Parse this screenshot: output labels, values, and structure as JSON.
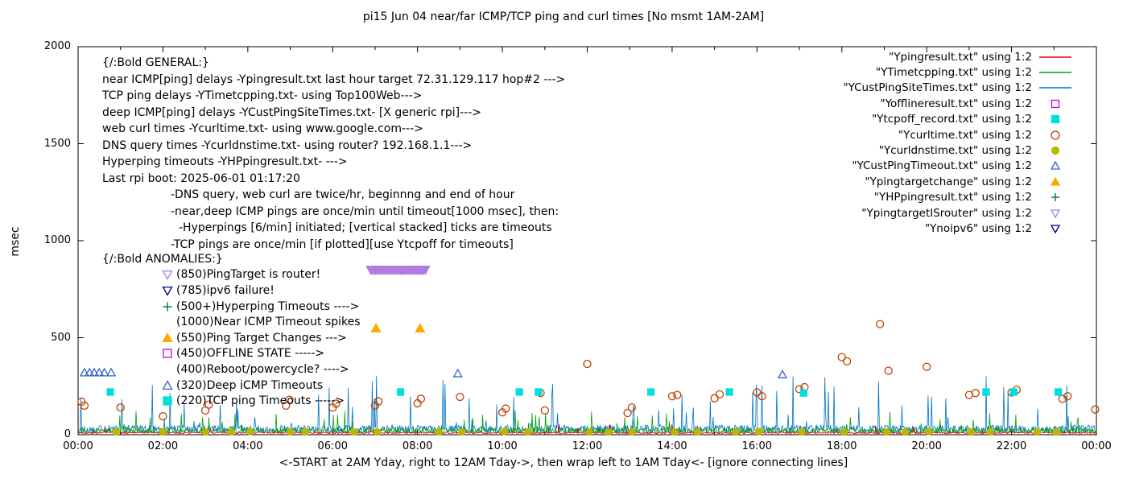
{
  "chart_data": {
    "type": "line+scatter",
    "title": "pi15 Jun 04  near/far ICMP/TCP ping and curl times [No msmt 1AM-2AM]",
    "ylabel": "msec",
    "xlabel": "<-START at 2AM Yday, right to 12AM Tday->, then wrap left to 1AM Tday<- [ignore connecting lines]",
    "ylim": [
      0,
      2000
    ],
    "x_hours": [
      0,
      24
    ],
    "grid": false,
    "legend_position": "top-right-inside",
    "x_ticks": [
      "00:00",
      "02:00",
      "04:00",
      "06:00",
      "08:00",
      "10:00",
      "12:00",
      "14:00",
      "16:00",
      "18:00",
      "20:00",
      "22:00",
      "00:00"
    ],
    "y_ticks": [
      0,
      500,
      1000,
      1500,
      2000
    ],
    "legend": [
      {
        "label": "\"Ypingresult.txt\" using 1:2",
        "sample": "line",
        "color": "#e60000"
      },
      {
        "label": "\"YTimetcpping.txt\" using 1:2",
        "sample": "line",
        "color": "#00a000"
      },
      {
        "label": "\"YCustPingSiteTimes.txt\" using 1:2",
        "sample": "line",
        "color": "#0072c8"
      },
      {
        "label": "\"Yofflineresult.txt\" using 1:2",
        "sample": "square-open",
        "color": "#cc00cc"
      },
      {
        "label": "\"Ytcpoff_record.txt\" using 1:2",
        "sample": "square-filled",
        "color": "#00dede"
      },
      {
        "label": "\"Ycurltime.txt\" using 1:2",
        "sample": "circle-open",
        "color": "#c04000"
      },
      {
        "label": "\"Ycurldnstime.txt\" using 1:2",
        "sample": "circle-filled",
        "color": "#b8b800"
      },
      {
        "label": "\"YCustPingTimeout.txt\" using 1:2",
        "sample": "triangle-open",
        "color": "#3465cd"
      },
      {
        "label": "\"Ypingtargetchange\" using 1:2",
        "sample": "triangle-filled",
        "color": "#ffa800"
      },
      {
        "label": "\"YHPpingresult.txt\" using 1:2",
        "sample": "plus",
        "color": "#008040"
      },
      {
        "label": "\"YpingtargetISrouter\" using 1:2",
        "sample": "tri-down-open",
        "color": "#b07ce0"
      },
      {
        "label": "\"Ynoipv6\" using 1:2",
        "sample": "tri-down-open",
        "color": "#000080"
      }
    ],
    "line_series": [
      {
        "name": "Ypingresult.txt",
        "color": "#e60000",
        "base": 5,
        "jitter": 10,
        "spike_prob": 0.012,
        "spike_max": 45,
        "seed": 7
      },
      {
        "name": "YTimetcpping.txt",
        "color": "#00a000",
        "base": 6,
        "jitter": 28,
        "spike_prob": 0.05,
        "spike_max": 110,
        "seed": 13
      },
      {
        "name": "YCustPingSiteTimes.txt",
        "color": "#0072c8",
        "base": 8,
        "jitter": 42,
        "spike_prob": 0.06,
        "spike_max": 260,
        "seed": 29
      }
    ],
    "scatter_series": [
      {
        "name": "Ycurltime.txt",
        "marker": "circle-open",
        "color": "#c04000",
        "size": 4.5,
        "points": [
          [
            0.08,
            170
          ],
          [
            0.15,
            150
          ],
          [
            1.0,
            140
          ],
          [
            2.0,
            95
          ],
          [
            3.0,
            125
          ],
          [
            3.08,
            155
          ],
          [
            4.9,
            150
          ],
          [
            4.98,
            180
          ],
          [
            6.0,
            140
          ],
          [
            6.08,
            160
          ],
          [
            7.0,
            150
          ],
          [
            7.08,
            172
          ],
          [
            8.0,
            162
          ],
          [
            8.08,
            185
          ],
          [
            9.0,
            195
          ],
          [
            10.0,
            115
          ],
          [
            10.08,
            135
          ],
          [
            10.9,
            215
          ],
          [
            11.0,
            125
          ],
          [
            12.0,
            365
          ],
          [
            12.95,
            112
          ],
          [
            13.05,
            140
          ],
          [
            14.0,
            198
          ],
          [
            14.12,
            205
          ],
          [
            15.0,
            188
          ],
          [
            15.12,
            208
          ],
          [
            16.0,
            218
          ],
          [
            16.12,
            198
          ],
          [
            17.0,
            235
          ],
          [
            17.12,
            245
          ],
          [
            18.0,
            400
          ],
          [
            18.12,
            378
          ],
          [
            18.9,
            570
          ],
          [
            19.1,
            330
          ],
          [
            20.0,
            350
          ],
          [
            21.0,
            205
          ],
          [
            21.15,
            215
          ],
          [
            22.0,
            218
          ],
          [
            22.12,
            232
          ],
          [
            23.2,
            185
          ],
          [
            23.32,
            198
          ],
          [
            23.97,
            130
          ]
        ]
      },
      {
        "name": "Ycurldnstime.txt",
        "marker": "circle-filled",
        "color": "#b8b800",
        "size": 4.5,
        "points": [
          [
            0.9,
            14
          ],
          [
            2.0,
            14
          ],
          [
            3.0,
            14
          ],
          [
            3.6,
            14
          ],
          [
            4.05,
            16
          ],
          [
            5.0,
            14
          ],
          [
            5.35,
            14
          ],
          [
            6.5,
            14
          ],
          [
            7.05,
            14
          ],
          [
            8.5,
            14
          ],
          [
            9.05,
            14
          ],
          [
            10.05,
            16
          ],
          [
            10.6,
            14
          ],
          [
            12.05,
            14
          ],
          [
            12.5,
            14
          ],
          [
            13.05,
            14
          ],
          [
            14.05,
            14
          ],
          [
            14.6,
            14
          ],
          [
            15.5,
            14
          ],
          [
            16.05,
            16
          ],
          [
            17.05,
            14
          ],
          [
            18.05,
            14
          ],
          [
            19.05,
            14
          ],
          [
            19.5,
            14
          ],
          [
            20.05,
            16
          ],
          [
            21.05,
            14
          ],
          [
            21.5,
            14
          ],
          [
            22.6,
            14
          ],
          [
            23.05,
            14
          ]
        ]
      },
      {
        "name": "Ytcpoff_record.txt",
        "marker": "square-filled",
        "color": "#00dede",
        "size": 4.5,
        "points": [
          [
            0.76,
            220
          ],
          [
            7.6,
            220
          ],
          [
            10.4,
            220
          ],
          [
            10.85,
            220
          ],
          [
            13.5,
            220
          ],
          [
            15.35,
            220
          ],
          [
            17.1,
            215
          ],
          [
            21.4,
            220
          ],
          [
            22.05,
            220
          ],
          [
            23.1,
            220
          ]
        ]
      },
      {
        "name": "YCustPingTimeout.txt",
        "marker": "triangle-open",
        "color": "#3465cd",
        "size": 5,
        "points": [
          [
            0.15,
            320
          ],
          [
            0.27,
            320
          ],
          [
            0.38,
            320
          ],
          [
            0.5,
            320
          ],
          [
            0.62,
            320
          ],
          [
            0.78,
            320
          ],
          [
            8.95,
            315
          ],
          [
            16.6,
            310
          ]
        ]
      },
      {
        "name": "Ypingtargetchange",
        "marker": "triangle-filled",
        "color": "#ffa800",
        "size": 5.5,
        "points": [
          [
            7.02,
            548
          ],
          [
            8.06,
            548
          ]
        ]
      }
    ],
    "band_series": {
      "name": "YpingtargetISrouter",
      "marker": "tri-down-filled",
      "color": "#b07ce0",
      "y": 850,
      "from": 6.9,
      "to": 8.18,
      "count": 34
    },
    "annotations": {
      "general": {
        "lines": [
          {
            "text": "{/:Bold GENERAL:}",
            "indent": 0
          },
          {
            "text": "near ICMP[ping] delays -Ypingresult.txt last hour target 72.31.129.117 hop#2 --->",
            "indent": 0
          },
          {
            "text": "TCP ping delays -YTimetcpping.txt- using Top100Web--->",
            "indent": 0
          },
          {
            "text": "deep ICMP[ping] delays -YCustPingSiteTimes.txt- [X generic rpi]--->",
            "indent": 0
          },
          {
            "text": "web curl times -Ycurltime.txt- using www.google.com--->",
            "indent": 0
          },
          {
            "text": "DNS query times -Ycurldnstime.txt- using router? 192.168.1.1--->",
            "indent": 0
          },
          {
            "text": "Hyperping timeouts -YHPpingresult.txt- --->",
            "indent": 0
          },
          {
            "text": "Last rpi boot: 2025-06-01 01:17:20",
            "indent": 0
          },
          {
            "text": "-DNS query, web curl are twice/hr, beginnng and end of hour",
            "indent": 85
          },
          {
            "text": "-near,deep ICMP pings are once/min until timeout[1000 msec], then:",
            "indent": 85
          },
          {
            "text": "-Hyperpings [6/min] initiated; [vertical stacked] ticks are timeouts",
            "indent": 95
          },
          {
            "text": "-TCP pings are once/min [if plotted][use Ytcpoff for timeouts]",
            "indent": 85
          }
        ]
      },
      "anomalies": {
        "lines": [
          {
            "text": "{/:Bold ANOMALIES:}",
            "marker": null,
            "color": null,
            "indent": 0
          },
          {
            "text": "(850)PingTarget is router!",
            "marker": "tri-down-open",
            "color": "#b07ce0",
            "indent": 73
          },
          {
            "text": "(785)ipv6 failure!",
            "marker": "tri-down-open",
            "color": "#000080",
            "indent": 73
          },
          {
            "text": "(500+)Hyperping Timeouts ---->",
            "marker": "plus",
            "color": "#008040",
            "indent": 73
          },
          {
            "text": "(1000)Near ICMP Timeout spikes",
            "marker": null,
            "color": null,
            "indent": 73
          },
          {
            "text": "(550)Ping Target Changes --->",
            "marker": "triangle-filled",
            "color": "#ffa800",
            "indent": 73
          },
          {
            "text": "(450)OFFLINE STATE ----->",
            "marker": "square-open",
            "color": "#cc00cc",
            "indent": 73
          },
          {
            "text": "(400)Reboot/powercycle? ---->",
            "marker": null,
            "color": null,
            "indent": 73
          },
          {
            "text": "(320)Deep iCMP Timeouts",
            "marker": "triangle-open",
            "color": "#3465cd",
            "indent": 73
          },
          {
            "text": "(220)TCP ping Timeouts ----->",
            "marker": "square-filled",
            "color": "#00dede",
            "indent": 73
          }
        ]
      }
    }
  }
}
